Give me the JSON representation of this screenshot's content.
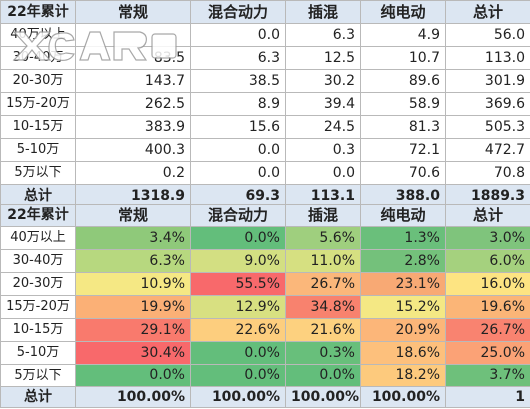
{
  "table1": {
    "headers": [
      "22年累计",
      "常规",
      "混合动力",
      "插混",
      "纯电动",
      "总计"
    ],
    "rows": [
      [
        "40万以上",
        "",
        "0.0",
        "6.3",
        "4.9",
        "56.0"
      ],
      [
        "30-40万",
        "83.5",
        "6.3",
        "12.5",
        "10.7",
        "113.0"
      ],
      [
        "20-30万",
        "143.7",
        "38.5",
        "30.2",
        "89.6",
        "301.9"
      ],
      [
        "15万-20万",
        "262.5",
        "8.9",
        "39.4",
        "58.9",
        "369.6"
      ],
      [
        "10-15万",
        "383.9",
        "15.6",
        "24.5",
        "81.3",
        "505.3"
      ],
      [
        "5-10万",
        "400.3",
        "0.0",
        "0.3",
        "72.1",
        "472.7"
      ],
      [
        "5万以下",
        "0.2",
        "0.0",
        "0.0",
        "70.6",
        "70.8"
      ]
    ],
    "total": [
      "总计",
      "1318.9",
      "69.3",
      "113.1",
      "388.0",
      "1889.3"
    ]
  },
  "table2": {
    "headers": [
      "22年累计",
      "常规",
      "混合动力",
      "插混",
      "纯电动",
      "总计"
    ],
    "rows": [
      [
        "40万以上",
        "3.4%",
        "0.0%",
        "5.6%",
        "1.3%",
        "3.0%"
      ],
      [
        "30-40万",
        "6.3%",
        "9.0%",
        "11.0%",
        "2.8%",
        "6.0%"
      ],
      [
        "20-30万",
        "10.9%",
        "55.5%",
        "26.7%",
        "23.1%",
        "16.0%"
      ],
      [
        "15万-20万",
        "19.9%",
        "12.9%",
        "34.8%",
        "15.2%",
        "19.6%"
      ],
      [
        "10-15万",
        "29.1%",
        "22.6%",
        "21.6%",
        "20.9%",
        "26.7%"
      ],
      [
        "5-10万",
        "30.4%",
        "0.0%",
        "0.3%",
        "18.6%",
        "25.0%"
      ],
      [
        "5万以下",
        "0.0%",
        "0.0%",
        "0.0%",
        "18.2%",
        "3.7%"
      ]
    ],
    "total": [
      "总计",
      "100.00%",
      "100.00%",
      "100.00%",
      "100.00%",
      "1"
    ],
    "cell_colors": [
      [
        "#8fc97a",
        "#63be7b",
        "#9fcf7e",
        "#6abf7b",
        "#7fc47c"
      ],
      [
        "#b7d87f",
        "#d3df82",
        "#d6e081",
        "#74c17b",
        "#a5d17e"
      ],
      [
        "#f5e884",
        "#f8696b",
        "#fbb77a",
        "#f8a974",
        "#fde482"
      ],
      [
        "#fbb076",
        "#d8e081",
        "#f8826e",
        "#f4e884",
        "#fbb577"
      ],
      [
        "#f97a6d",
        "#fdce7e",
        "#fdd17f",
        "#fcb679",
        "#f98370"
      ],
      [
        "#f8696b",
        "#63be7b",
        "#68bf7b",
        "#fdc07c",
        "#fba276"
      ],
      [
        "#63be7b",
        "#63be7b",
        "#63be7b",
        "#fdca7d",
        "#6ec07b"
      ]
    ]
  },
  "watermark": "XCAR 爱卡汽车"
}
